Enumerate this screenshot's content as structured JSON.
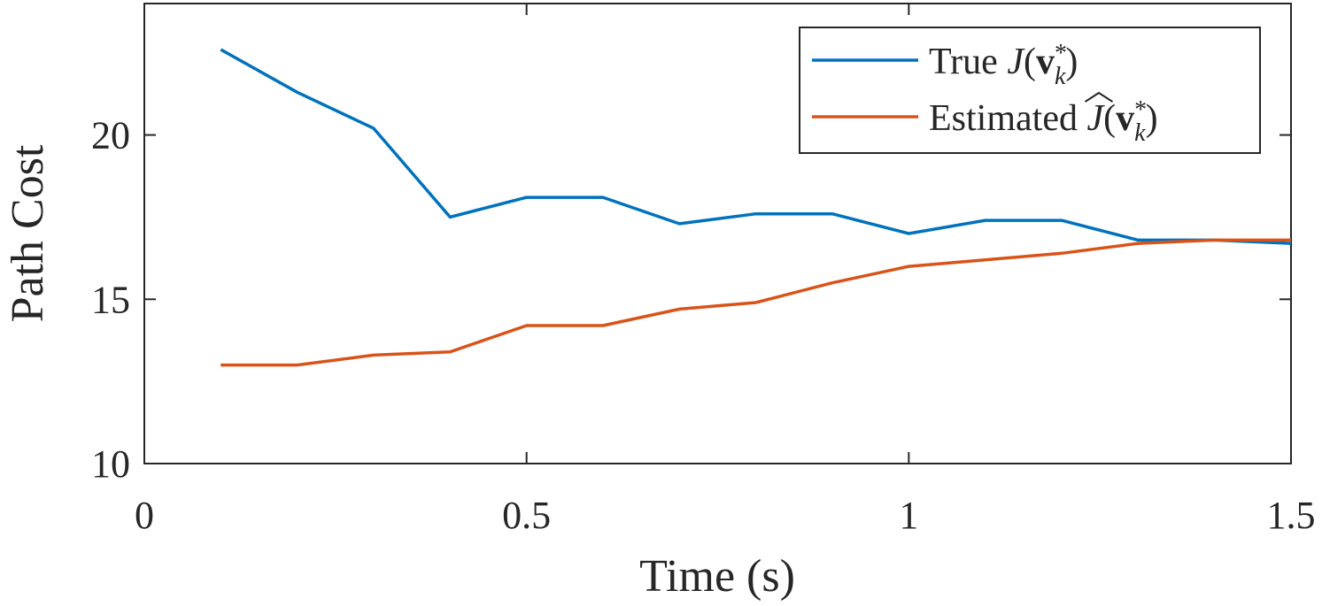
{
  "chart_data": {
    "type": "line",
    "xlabel": "Time (s)",
    "ylabel": "Path Cost",
    "xlim": [
      0,
      1.5
    ],
    "ylim": [
      10,
      24
    ],
    "x_ticks": [
      0,
      0.5,
      1,
      1.5
    ],
    "x_tick_labels": [
      "0",
      "0.5",
      "1",
      "1.5"
    ],
    "y_ticks": [
      10,
      15,
      20
    ],
    "y_tick_labels": [
      "10",
      "15",
      "20"
    ],
    "grid": false,
    "legend_position": "top-right",
    "x": [
      0.1,
      0.2,
      0.3,
      0.4,
      0.5,
      0.6,
      0.7,
      0.8,
      0.9,
      1.0,
      1.1,
      1.2,
      1.3,
      1.4,
      1.5
    ],
    "series": [
      {
        "name": "True J(v*_k)",
        "legend_prefix": "True",
        "legend_symbol": "J",
        "legend_hat": false,
        "color": "#0072BD",
        "values": [
          22.6,
          21.3,
          20.2,
          17.5,
          18.1,
          18.1,
          17.3,
          17.6,
          17.6,
          17.0,
          17.4,
          17.4,
          16.8,
          16.8,
          16.7
        ]
      },
      {
        "name": "Estimated Ĵ(v*_k)",
        "legend_prefix": "Estimated",
        "legend_symbol": "J",
        "legend_hat": true,
        "color": "#D95319",
        "values": [
          13.0,
          13.0,
          13.3,
          13.4,
          14.2,
          14.2,
          14.7,
          14.9,
          15.5,
          16.0,
          16.2,
          16.4,
          16.7,
          16.8,
          16.8
        ]
      }
    ]
  }
}
